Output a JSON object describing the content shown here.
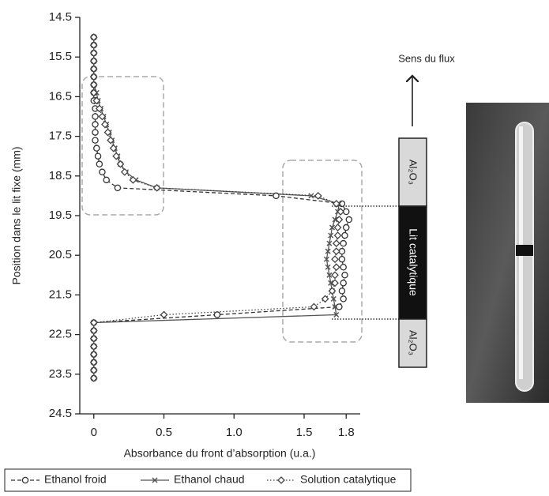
{
  "chart_data": {
    "type": "scatter-line",
    "y_label": "Position dans le lit fixe (mm)",
    "x_label": "Absorbance du front d’absorption (u.a.)",
    "xlim": [
      -0.1,
      1.9
    ],
    "xticks": [
      0,
      0.5,
      {
        "value": 1,
        "label": "1.0"
      },
      1.5,
      1.8
    ],
    "ylim": [
      14.5,
      24.5
    ],
    "y_inverted": true,
    "yticks": [
      14.5,
      15.5,
      16.5,
      17.5,
      18.5,
      19.5,
      20.5,
      21.5,
      22.5,
      23.5,
      24.5
    ],
    "y": [
      15.0,
      15.2,
      15.4,
      15.6,
      15.8,
      16.0,
      16.2,
      16.4,
      16.6,
      16.8,
      17.0,
      17.2,
      17.4,
      17.6,
      17.8,
      18.0,
      18.2,
      18.4,
      18.6,
      18.8,
      19.0,
      19.2,
      19.4,
      19.6,
      19.8,
      20.0,
      20.2,
      20.4,
      20.6,
      20.8,
      21.0,
      21.2,
      21.4,
      21.6,
      21.8,
      22.0,
      22.2,
      22.4,
      22.6,
      22.8,
      23.0,
      23.2,
      23.4,
      23.6
    ],
    "series": [
      {
        "name": "Ethanol froid",
        "color": "#333333",
        "line_style": "dashed",
        "marker": "circle",
        "values": [
          0,
          0,
          0,
          0,
          0,
          0,
          0,
          0,
          0,
          0.01,
          0.01,
          0.01,
          0.01,
          0.01,
          0.02,
          0.03,
          0.04,
          0.06,
          0.09,
          0.17,
          1.3,
          1.77,
          1.8,
          1.82,
          1.8,
          1.79,
          1.78,
          1.77,
          1.77,
          1.78,
          1.79,
          1.78,
          1.77,
          1.78,
          1.75,
          0.88,
          0,
          0,
          0,
          0,
          0,
          0,
          0,
          0
        ]
      },
      {
        "name": "Ethanol chaud",
        "color": "#555555",
        "line_style": "solid",
        "marker": "x",
        "values": [
          0,
          0,
          0,
          0,
          0,
          0,
          0,
          0.02,
          0.03,
          0.05,
          0.07,
          0.09,
          0.11,
          0.13,
          0.15,
          0.17,
          0.19,
          0.23,
          0.3,
          0.45,
          1.55,
          1.75,
          1.74,
          1.72,
          1.7,
          1.69,
          1.68,
          1.67,
          1.66,
          1.67,
          1.68,
          1.69,
          1.7,
          1.71,
          1.72,
          1.73,
          0,
          0,
          0,
          0,
          0,
          0,
          0,
          0
        ]
      },
      {
        "name": "Solution catalytique",
        "color": "#444444",
        "line_style": "dotted",
        "marker": "diamond",
        "values": [
          0,
          0,
          0,
          0,
          0,
          0,
          0,
          0,
          0.02,
          0.04,
          0.06,
          0.08,
          0.1,
          0.12,
          0.14,
          0.16,
          0.19,
          0.22,
          0.28,
          0.45,
          1.6,
          1.73,
          1.76,
          1.75,
          1.74,
          1.74,
          1.73,
          1.73,
          1.72,
          1.73,
          1.72,
          1.72,
          1.7,
          1.65,
          1.57,
          0.5,
          0,
          0,
          0,
          0,
          0,
          0,
          0,
          0
        ]
      }
    ]
  },
  "reactor": {
    "flow_label": "Sens du flux",
    "top_layer": "Al₂O₃",
    "bed": "Lit catalytique",
    "bottom_layer": "Al₂O₃"
  }
}
